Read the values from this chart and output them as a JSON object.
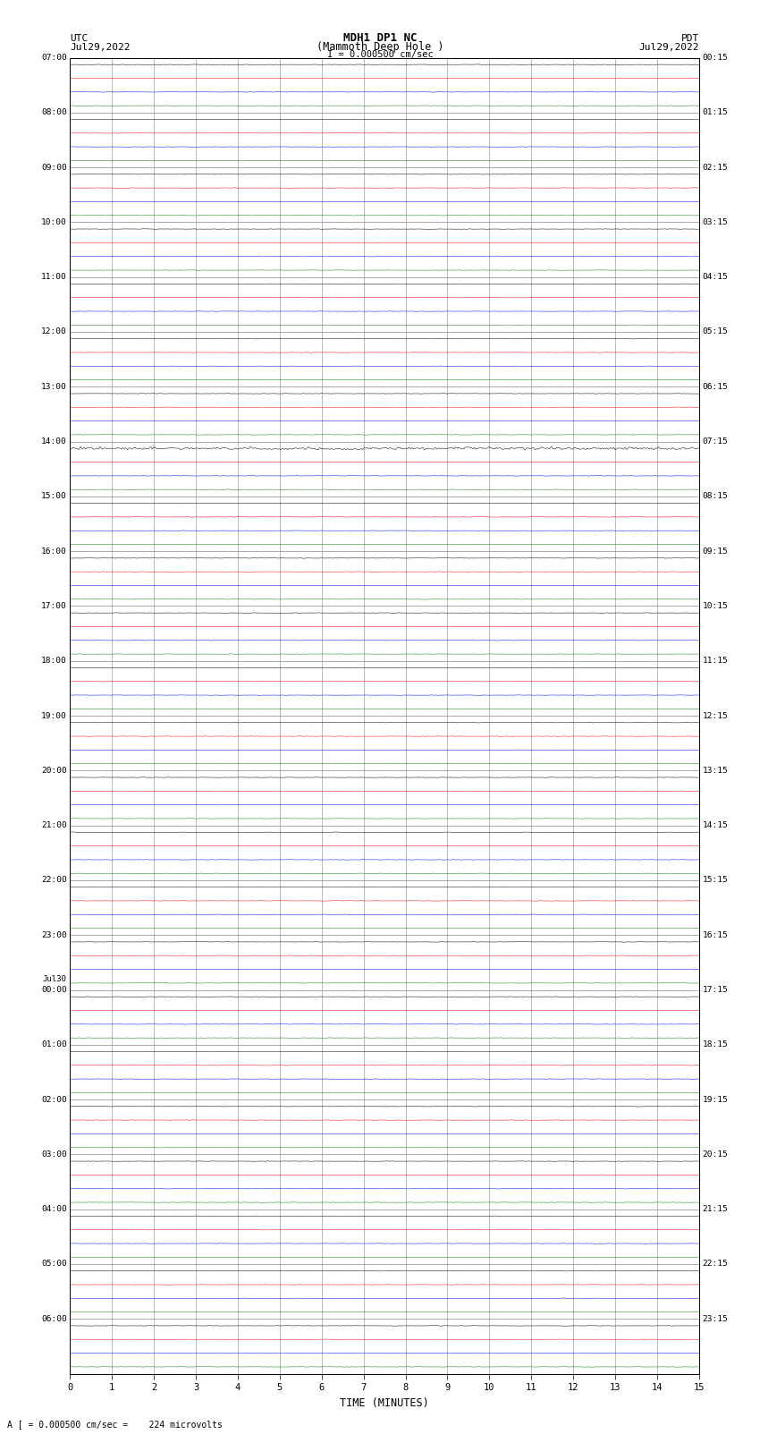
{
  "title_line1": "MDH1 DP1 NC",
  "title_line2": "(Mammoth Deep Hole )",
  "scale_label": "I = 0.000500 cm/sec",
  "left_label": "UTC",
  "right_label": "PDT",
  "date_left": "Jul29,2022",
  "date_right": "Jul29,2022",
  "footer": "A [ = 0.000500 cm/sec =    224 microvolts",
  "xlabel": "TIME (MINUTES)",
  "xlim": [
    0,
    15
  ],
  "xticks": [
    0,
    1,
    2,
    3,
    4,
    5,
    6,
    7,
    8,
    9,
    10,
    11,
    12,
    13,
    14,
    15
  ],
  "left_times": [
    "07:00",
    "08:00",
    "09:00",
    "10:00",
    "11:00",
    "12:00",
    "13:00",
    "14:00",
    "15:00",
    "16:00",
    "17:00",
    "18:00",
    "19:00",
    "20:00",
    "21:00",
    "22:00",
    "23:00",
    "Jul30\n00:00",
    "01:00",
    "02:00",
    "03:00",
    "04:00",
    "05:00",
    "06:00"
  ],
  "right_times": [
    "00:15",
    "01:15",
    "02:15",
    "03:15",
    "04:15",
    "05:15",
    "06:15",
    "07:15",
    "08:15",
    "09:15",
    "10:15",
    "11:15",
    "12:15",
    "13:15",
    "14:15",
    "15:15",
    "16:15",
    "17:15",
    "18:15",
    "19:15",
    "20:15",
    "21:15",
    "22:15",
    "23:15"
  ],
  "n_hours": 24,
  "traces_per_hour": 4,
  "trace_colors": [
    "black",
    "red",
    "blue",
    "green"
  ],
  "bg_color": "white",
  "noise_amplitude": 0.018,
  "special_hour": 7,
  "special_trace": 0,
  "special_amplitude": 0.12
}
